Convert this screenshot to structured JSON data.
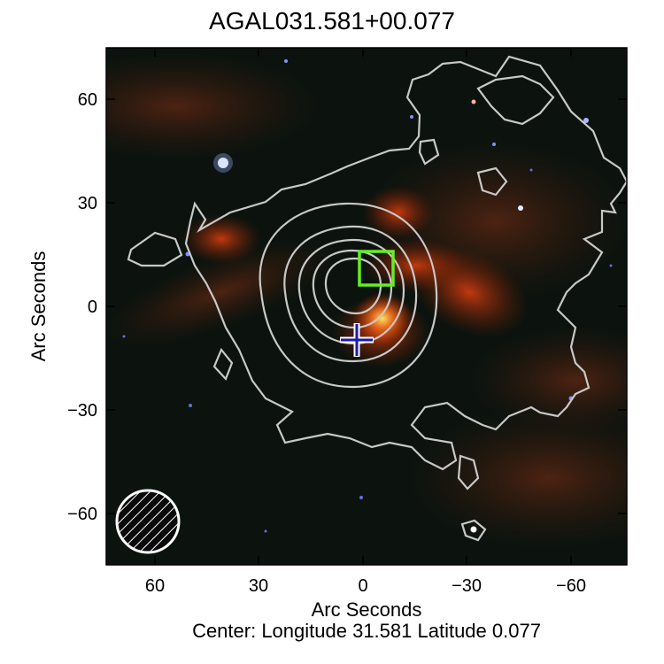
{
  "title": "AGAL031.581+00.077",
  "xlabel": "Arc Seconds",
  "ylabel": "Arc Seconds",
  "center_label": "Center:  Longitude 31.581 Latitude 0.077",
  "x_ticks": [
    "60",
    "30",
    "0",
    "−30",
    "−60"
  ],
  "x_tick_values": [
    60,
    30,
    0,
    -30,
    -60
  ],
  "y_ticks": [
    "60",
    "30",
    "0",
    "−30",
    "−60"
  ],
  "y_tick_values": [
    60,
    30,
    0,
    -30,
    -60
  ],
  "axes": {
    "x_range": [
      75,
      -75
    ],
    "y_range": [
      -75,
      75
    ]
  },
  "markers": {
    "cross_color": "#1a1aaa",
    "box_color": "#66ee22",
    "contour_color": "#c8c8c8",
    "beam_color": "#ffffff"
  },
  "icons": [
    "plus-marker-icon",
    "square-marker-icon",
    "hatched-beam-icon"
  ]
}
